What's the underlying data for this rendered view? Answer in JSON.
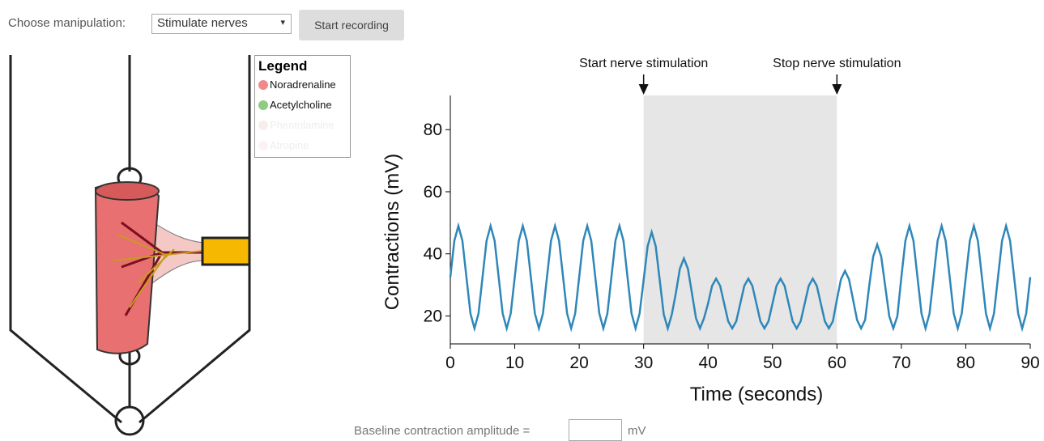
{
  "controls": {
    "manipulation_label": "Choose manipulation:",
    "manipulation_value": "Stimulate nerves",
    "record_button": "Start recording"
  },
  "legend": {
    "title": "Legend",
    "items": [
      {
        "label": "Noradrenaline",
        "color": "#f08a8a",
        "active": true
      },
      {
        "label": "Acetylcholine",
        "color": "#90cc80",
        "active": true
      },
      {
        "label": "Phentolamine",
        "color": "#f7eded",
        "active": false
      },
      {
        "label": "Atropine",
        "color": "#fbf3f3",
        "active": false
      }
    ]
  },
  "chart_data": {
    "type": "line",
    "x_label": "Time (seconds)",
    "y_label": "Contractions (mV)",
    "color": "#2f87b8",
    "shaded_region": [
      30,
      60
    ],
    "annotations": [
      {
        "text": "Start nerve stimulation",
        "x": 30
      },
      {
        "text": "Stop nerve stimulation",
        "x": 60
      }
    ],
    "xlim": [
      0,
      90
    ],
    "xticks": [
      0,
      10,
      20,
      30,
      40,
      50,
      60,
      70,
      80,
      90
    ],
    "ylim": [
      11,
      91
    ],
    "yticks": [
      20,
      40,
      60,
      80
    ],
    "grid": false,
    "x": [
      0,
      0.625,
      1.25,
      1.875,
      2.5,
      3.125,
      3.75,
      4.375,
      5,
      5.625,
      6.25,
      6.875,
      7.5,
      8.125,
      8.75,
      9.375,
      10,
      10.625,
      11.25,
      11.875,
      12.5,
      13.125,
      13.75,
      14.375,
      15,
      15.625,
      16.25,
      16.875,
      17.5,
      18.125,
      18.75,
      19.375,
      20,
      20.625,
      21.25,
      21.875,
      22.5,
      23.125,
      23.75,
      24.375,
      25,
      25.625,
      26.25,
      26.875,
      27.5,
      28.125,
      28.75,
      29.375,
      30,
      30.625,
      31.25,
      31.875,
      32.5,
      33.125,
      33.75,
      34.375,
      35,
      35.625,
      36.25,
      36.875,
      37.5,
      38.125,
      38.75,
      39.375,
      40,
      40.625,
      41.25,
      41.875,
      42.5,
      43.125,
      43.75,
      44.375,
      45,
      45.625,
      46.25,
      46.875,
      47.5,
      48.125,
      48.75,
      49.375,
      50,
      50.625,
      51.25,
      51.875,
      52.5,
      53.125,
      53.75,
      54.375,
      55,
      55.625,
      56.25,
      56.875,
      57.5,
      58.125,
      58.75,
      59.375,
      60,
      60.625,
      61.25,
      61.875,
      62.5,
      63.125,
      63.75,
      64.375,
      65,
      65.625,
      66.25,
      66.875,
      67.5,
      68.125,
      68.75,
      69.375,
      70,
      70.625,
      71.25,
      71.875,
      72.5,
      73.125,
      73.75,
      74.375,
      75,
      75.625,
      76.25,
      76.875,
      77.5,
      78.125,
      78.75,
      79.375,
      80,
      80.625,
      81.25,
      81.875,
      82.5,
      83.125,
      83.75,
      84.375,
      85,
      85.625,
      86.25,
      86.875,
      87.5,
      88.125,
      88.75,
      89.375,
      90
    ],
    "values": [
      32.5,
      44.2,
      49,
      44.2,
      32.5,
      20.8,
      16,
      20.8,
      32.5,
      44.2,
      49,
      44.2,
      32.5,
      20.8,
      16,
      20.8,
      32.5,
      44.2,
      49,
      44.2,
      32.5,
      20.8,
      16,
      20.8,
      32.5,
      44.2,
      49,
      44.2,
      32.5,
      20.8,
      16,
      20.8,
      32.5,
      44.2,
      49,
      44.2,
      32.5,
      20.8,
      16,
      20.8,
      32.5,
      44.2,
      49,
      44.2,
      32.5,
      20.8,
      16,
      20.8,
      31.5,
      42.5,
      47,
      42.5,
      31.5,
      20.5,
      16,
      20.5,
      27.3,
      35.2,
      38.5,
      35.2,
      27.3,
      19.3,
      16,
      19.3,
      24,
      29.7,
      32,
      29.7,
      24,
      18.3,
      16,
      18.3,
      24,
      29.7,
      32,
      29.7,
      24,
      18.3,
      16,
      18.3,
      24,
      29.7,
      32,
      29.7,
      24,
      18.3,
      16,
      18.3,
      24,
      29.7,
      32,
      29.7,
      24,
      18.3,
      16,
      18.3,
      25.3,
      31.8,
      34.5,
      31.8,
      25.3,
      18.7,
      16,
      18.7,
      29.5,
      39.1,
      43,
      39.1,
      29.5,
      19.9,
      16,
      19.9,
      32.5,
      44.2,
      49,
      44.2,
      32.5,
      20.8,
      16,
      20.8,
      32.5,
      44.2,
      49,
      44.2,
      32.5,
      20.8,
      16,
      20.8,
      32.5,
      44.2,
      49,
      44.2,
      32.5,
      20.8,
      16,
      20.8,
      32.5,
      44.2,
      49,
      44.2,
      32.5,
      20.8,
      16,
      20.8,
      32.5
    ]
  },
  "baseline": {
    "label": "Baseline contraction amplitude =",
    "unit": "mV"
  }
}
